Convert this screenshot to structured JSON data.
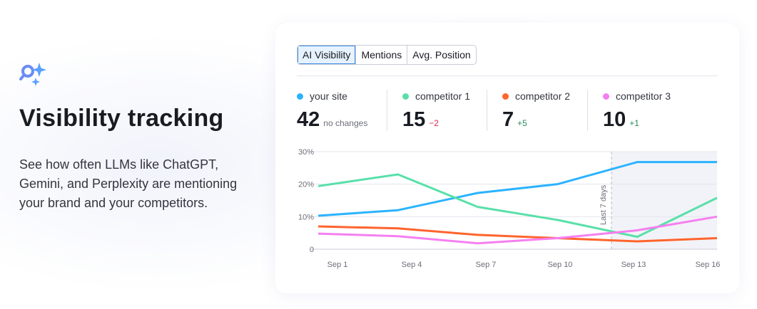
{
  "feature": {
    "title": "Visibility tracking",
    "description": "See how often LLMs like ChatGPT, Gemini, and Perplexity are mentioning your brand and your competitors.",
    "icon": "sparkle-search-icon"
  },
  "tabs": [
    {
      "label": "AI Visibility",
      "active": true
    },
    {
      "label": "Mentions",
      "active": false
    },
    {
      "label": "Avg. Position",
      "active": false
    }
  ],
  "stats": [
    {
      "label": "your site",
      "value": "42",
      "change": "no changes",
      "change_color": "#6c6e79",
      "color": "#2bb3ff"
    },
    {
      "label": "competitor 1",
      "value": "15",
      "change": "−2",
      "change_color": "#e0294a",
      "color": "#59e0a9"
    },
    {
      "label": "competitor 2",
      "value": "7",
      "change": "+5",
      "change_color": "#2a8c5f",
      "color": "#ff642d"
    },
    {
      "label": "competitor 3",
      "value": "10",
      "change": "+1",
      "change_color": "#2a8c5f",
      "color": "#f57ff0"
    }
  ],
  "chart_data": {
    "type": "line",
    "categories": [
      "Sep 1",
      "Sep 4",
      "Sep 7",
      "Sep 10",
      "Sep 13",
      "Sep 16"
    ],
    "yticks": [
      "0",
      "10%",
      "20%",
      "30%"
    ],
    "ylim": [
      0,
      30
    ],
    "annotation": "Last 7 days",
    "series": [
      {
        "name": "your site",
        "color": "#2bb3ff",
        "values": [
          10.3,
          12.0,
          17.3,
          20.0,
          26.8,
          26.8
        ]
      },
      {
        "name": "competitor 1",
        "color": "#59e0a9",
        "values": [
          19.4,
          23.0,
          13.0,
          9.0,
          3.8,
          15.8
        ]
      },
      {
        "name": "competitor 2",
        "color": "#ff642d",
        "values": [
          7.0,
          6.4,
          4.4,
          3.4,
          2.4,
          3.4
        ]
      },
      {
        "name": "competitor 3",
        "color": "#f57ff0",
        "values": [
          4.8,
          4.0,
          1.8,
          3.4,
          5.8,
          10.0
        ]
      }
    ]
  }
}
